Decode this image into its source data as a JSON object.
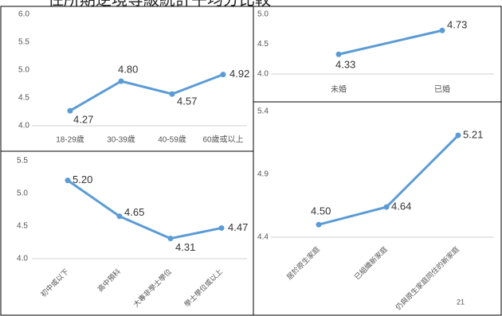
{
  "title": "住所期逆境等級統計平均分比較",
  "page_number": "21",
  "chart_data": [
    {
      "type": "line",
      "categories": [
        "18-29歲",
        "30-39歲",
        "40-59歲",
        "60歲或以上"
      ],
      "values": [
        4.27,
        4.8,
        4.57,
        4.92
      ],
      "value_labels": [
        "4.27",
        "4.80",
        "4.57",
        "4.92"
      ],
      "color": "#5b9bd5",
      "ylim": [
        4.0,
        6.0
      ],
      "yticks": [
        {
          "value": 4.0,
          "label": "4.0"
        },
        4.5,
        {
          "value": 5.0,
          "label": "5.0"
        },
        5.5,
        {
          "value": 6.0,
          "label": "6.0"
        }
      ]
    },
    {
      "type": "line",
      "categories": [
        "未婚",
        "已婚"
      ],
      "values": [
        4.33,
        4.73
      ],
      "value_labels": [
        "4.33",
        "4.73"
      ],
      "color": "#5b9bd5",
      "ylim": [
        4.0,
        5.0
      ],
      "yticks": [
        {
          "value": 4.0,
          "label": "4.0"
        },
        4.5,
        {
          "value": 5.0,
          "label": "5.0"
        }
      ]
    },
    {
      "type": "line",
      "categories": [
        "初中或以下",
        "高中預科",
        "大專非學士學位",
        "學士學位或以上"
      ],
      "values": [
        5.2,
        4.65,
        4.31,
        4.47
      ],
      "value_labels": [
        "5.20",
        "4.65",
        "4.31",
        "4.47"
      ],
      "color": "#5b9bd5",
      "ylim": [
        4.0,
        5.5
      ],
      "yticks": [
        {
          "value": 4.0,
          "label": "4.0"
        },
        4.5,
        {
          "value": 5.0,
          "label": "5.0"
        },
        5.5
      ]
    },
    {
      "type": "line",
      "categories": [
        "居於原生家庭",
        "已組織新家庭",
        "仍與原生家庭同住的新家庭"
      ],
      "values": [
        4.5,
        4.64,
        5.21
      ],
      "value_labels": [
        "4.50",
        "4.64",
        "5.21"
      ],
      "color": "#5b9bd5",
      "ylim": [
        4.4,
        5.4
      ],
      "yticks": [
        4.4,
        4.9,
        5.4
      ]
    }
  ]
}
